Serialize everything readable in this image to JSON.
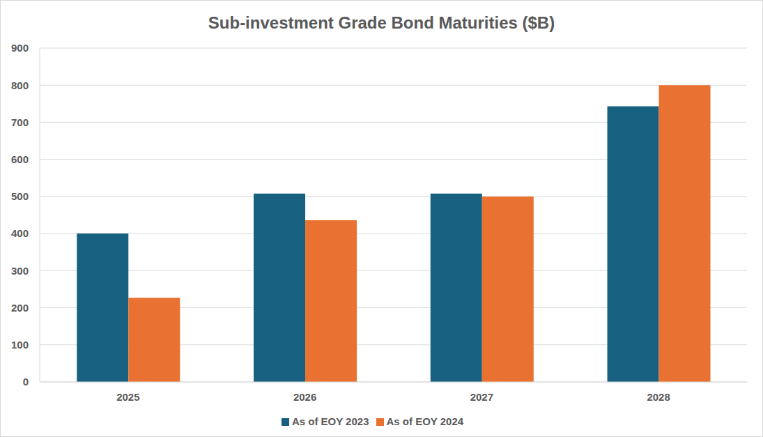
{
  "chart_data": {
    "type": "bar",
    "title": "Sub-investment Grade Bond Maturities ($B)",
    "categories": [
      "2025",
      "2026",
      "2027",
      "2028"
    ],
    "series": [
      {
        "name": "As of EOY 2023",
        "color": "#17607f",
        "values": [
          400,
          508,
          508,
          743
        ]
      },
      {
        "name": "As of EOY 2024",
        "color": "#e97132",
        "values": [
          227,
          436,
          500,
          800
        ]
      }
    ],
    "ylim": [
      0,
      900
    ],
    "yticks": [
      0,
      100,
      200,
      300,
      400,
      500,
      600,
      700,
      800,
      900
    ],
    "grid": true,
    "legend": "bottom"
  }
}
